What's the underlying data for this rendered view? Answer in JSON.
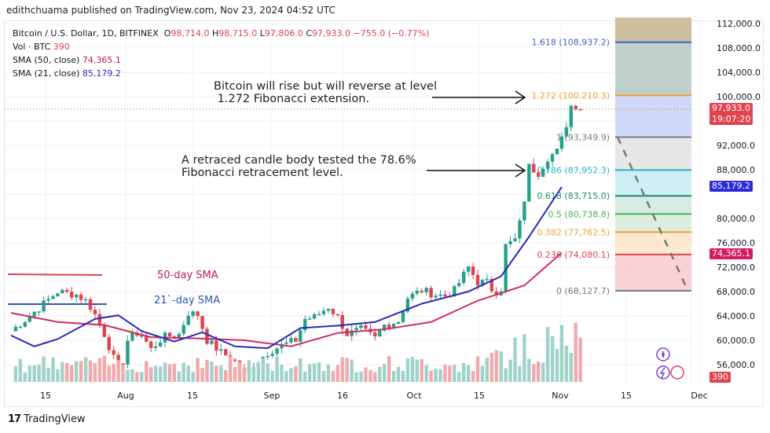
{
  "header": {
    "published_by": "edithchuama published on TradingView.com, Nov 23, 2024 04:52 UTC"
  },
  "legend": {
    "symbol": "Bitcoin / U.S. Dollar, 1D, BITFINEX",
    "open_label": "O",
    "open": "98,714.0",
    "high_label": "H",
    "high": "98,715.0",
    "low_label": "L",
    "low": "97,806.0",
    "close_label": "C",
    "close": "97,933.0",
    "change": "−755.0 (−0.77%)",
    "vol_label": "Vol · BTC",
    "vol": "390",
    "sma50_label": "SMA (50, close)",
    "sma50": "74,365.1",
    "sma21_label": "SMA (21, close)",
    "sma21": "85,179.2"
  },
  "annotations": {
    "top_note": "Bitcoin will rise but will reverse at level\n 1.272 Fibonacci extension.",
    "mid_note": "A retraced candle body tested the 78.6%\nFibonacci retracement level.",
    "sma50_label": "50-day SMA",
    "sma21_label": "21`-day SMA"
  },
  "price_tags": {
    "last_price": "97,933.0",
    "countdown": "19:07:20",
    "sma21": "85,179.2",
    "sma50": "74,365.1",
    "volume": "390"
  },
  "footer": {
    "brand": "TradingView",
    "brand_mark": "17"
  },
  "colors": {
    "up": "#26a08a",
    "down": "#e0424f",
    "vol_up": "#9fd3ca",
    "vol_down": "#f3a9ab",
    "sma21": "#2a2ab8",
    "sma50": "#d02c63"
  },
  "chart_data": {
    "type": "candlestick",
    "title": "Bitcoin / U.S. Dollar, 1D, BITFINEX",
    "y_axis": {
      "ticks": [
        "112,000.0",
        "108,000.0",
        "104,000.0",
        "100,000.0",
        "92,000.0",
        "88,000.0",
        "80,000.0",
        "76,000.0",
        "72,000.0",
        "68,000.0",
        "64,000.0",
        "60,000.0",
        "56,000.0"
      ],
      "range": [
        54000,
        113000
      ]
    },
    "x_axis": {
      "ticks": [
        "15",
        "Aug",
        "15",
        "Sep",
        "16",
        "Oct",
        "15",
        "Nov",
        "15",
        "Dec"
      ]
    },
    "fibonacci": [
      {
        "ratio": "1.618",
        "price": "108,937.2",
        "color": "#3d63c9"
      },
      {
        "ratio": "1.272",
        "price": "100,210.3",
        "color": "#f0a030"
      },
      {
        "ratio": "1",
        "price": "93,349.9",
        "color": "#787b86"
      },
      {
        "ratio": "0.786",
        "price": "87,952.3",
        "color": "#26b5c9"
      },
      {
        "ratio": "0.618",
        "price": "83,715.0",
        "color": "#1e8c6e"
      },
      {
        "ratio": "0.5",
        "price": "80,738.8",
        "color": "#4caf50"
      },
      {
        "ratio": "0.382",
        "price": "77,762.5",
        "color": "#f0a030"
      },
      {
        "ratio": "0.236",
        "price": "74,080.1",
        "color": "#e0424f"
      },
      {
        "ratio": "0",
        "price": "68,127.7",
        "color": "#787b86"
      }
    ],
    "sma50_last": 74365.1,
    "sma21_last": 85179.2,
    "last_close": 97933.0,
    "volume_last": 390
  }
}
